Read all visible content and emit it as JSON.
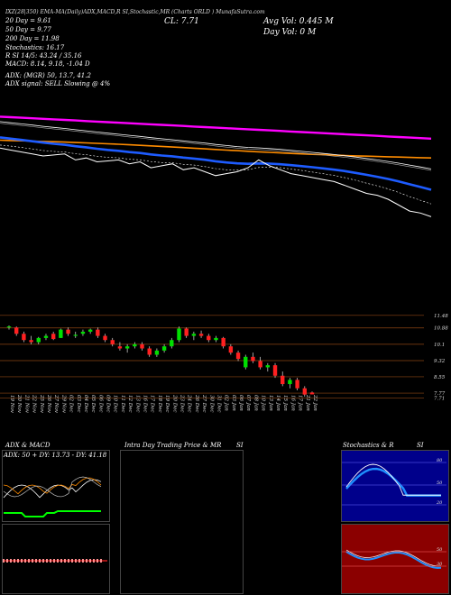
{
  "header": {
    "top_line": "IXZ(28|350)  EMA‑MA(Daily)ADX,MACD,R     SI,Stochastic,MR     (Charts ORLD          ) MunafaSutra.com",
    "ema20": "20 Day = 9.61",
    "ema50": "50 Day = 9.77",
    "ema200": "200 Day = 11.98",
    "stochastics": "Stochastics: 16.17",
    "rsi": "R          SI 14/5: 43.24 / 35.16",
    "macd": "MACD: 8.14, 9.18, -1.04  D",
    "adx": "ADX:                    (MGR) 50, 13.7, 41.2",
    "adx_signal": "ADX signal: SELL Slowing @ 4%",
    "close": "CL: 7.71",
    "avg_vol": "Avg Vol: 0.445 M",
    "day_vol": "Day Vol: 0  M"
  },
  "panels": {
    "adx_macd_title": "ADX & MACD",
    "adx_values": "ADX: 50 + DY: 13.73 - DY: 41.18",
    "intraday_title": "Intra Day Trading Price & MR",
    "intraday_si": "SI",
    "stoch_title": "Stochastics & R",
    "stoch_si": "SI",
    "macd_label": "MACD"
  },
  "chart_data": [
    {
      "type": "line",
      "name": "price-ema-overview",
      "series": [
        {
          "name": "price",
          "values": [
            11.2,
            11.1,
            11.0,
            10.9,
            10.8,
            10.85,
            10.9,
            10.6,
            10.7,
            10.5,
            10.55,
            10.6,
            10.4,
            10.5,
            10.2,
            10.3,
            10.4,
            10.1,
            10.2,
            10.0,
            9.8,
            9.9,
            10.0,
            10.2,
            10.6,
            10.3,
            10.1,
            9.9,
            9.8,
            9.7,
            9.6,
            9.5,
            9.3,
            9.1,
            8.9,
            8.8,
            8.6,
            8.3,
            8.0,
            7.9,
            7.71
          ]
        },
        {
          "name": "ema20",
          "color": "#1e5cff"
        },
        {
          "name": "ema50",
          "color": "#ffffff"
        },
        {
          "name": "ema200",
          "color": "#ff00ff"
        },
        {
          "name": "ema100",
          "color": "#ff8c00"
        }
      ]
    },
    {
      "type": "candlestick",
      "name": "daily-candles",
      "price_ticks": [
        "11.48",
        "10.88",
        "10.1",
        "9.32",
        "8.55",
        "7.77",
        "7.71"
      ],
      "dates": [
        "19 Nov",
        "20 Nov",
        "21 Nov",
        "22 Nov",
        "25 Nov",
        "26 Nov",
        "27 Nov",
        "29 Nov",
        "02 Dec",
        "03 Dec",
        "04 Dec",
        "05 Dec",
        "06 Dec",
        "09 Dec",
        "10 Dec",
        "11 Dec",
        "12 Dec",
        "13 Dec",
        "16 Dec",
        "17 Dec",
        "18 Dec",
        "19 Dec",
        "20 Dec",
        "23 Dec",
        "24 Dec",
        "26 Dec",
        "27 Dec",
        "30 Dec",
        "31 Dec",
        "02 Jan",
        "03 Jan",
        "06 Jan",
        "07 Jan",
        "08 Jan",
        "10 Jan",
        "13 Jan",
        "14 Jan",
        "15 Jan",
        "16 Jan",
        "17 Jan",
        "21 Jan",
        "22 Jan"
      ],
      "candles": [
        [
          10.9,
          11.0,
          10.8,
          10.95
        ],
        [
          10.9,
          10.95,
          10.5,
          10.6
        ],
        [
          10.6,
          10.7,
          10.2,
          10.3
        ],
        [
          10.3,
          10.5,
          10.1,
          10.2
        ],
        [
          10.2,
          10.45,
          10.1,
          10.4
        ],
        [
          10.4,
          10.6,
          10.3,
          10.5
        ],
        [
          10.6,
          10.7,
          10.3,
          10.35
        ],
        [
          10.4,
          10.85,
          10.4,
          10.8
        ],
        [
          10.8,
          10.9,
          10.5,
          10.6
        ],
        [
          10.5,
          10.7,
          10.4,
          10.55
        ],
        [
          10.6,
          10.8,
          10.5,
          10.7
        ],
        [
          10.7,
          10.85,
          10.6,
          10.8
        ],
        [
          10.8,
          10.9,
          10.4,
          10.5
        ],
        [
          10.5,
          10.6,
          10.2,
          10.3
        ],
        [
          10.3,
          10.4,
          10.0,
          10.1
        ],
        [
          10.0,
          10.2,
          9.8,
          9.9
        ],
        [
          9.9,
          10.1,
          9.7,
          10.0
        ],
        [
          10.0,
          10.2,
          9.9,
          10.1
        ],
        [
          10.1,
          10.2,
          9.8,
          9.9
        ],
        [
          9.9,
          10.0,
          9.5,
          9.6
        ],
        [
          9.6,
          9.9,
          9.5,
          9.8
        ],
        [
          9.8,
          10.1,
          9.7,
          10.0
        ],
        [
          10.0,
          10.4,
          9.9,
          10.3
        ],
        [
          10.3,
          10.95,
          10.2,
          10.85
        ],
        [
          10.85,
          10.9,
          10.4,
          10.5
        ],
        [
          10.5,
          10.7,
          10.3,
          10.6
        ],
        [
          10.6,
          10.75,
          10.4,
          10.5
        ],
        [
          10.5,
          10.6,
          10.2,
          10.3
        ],
        [
          10.3,
          10.5,
          10.2,
          10.4
        ],
        [
          10.4,
          10.45,
          9.9,
          10.0
        ],
        [
          10.0,
          10.1,
          9.6,
          9.7
        ],
        [
          9.7,
          9.8,
          9.3,
          9.4
        ],
        [
          9.0,
          9.6,
          8.9,
          9.5
        ],
        [
          9.5,
          9.7,
          9.2,
          9.3
        ],
        [
          9.3,
          9.5,
          8.9,
          9.0
        ],
        [
          9.0,
          9.2,
          8.8,
          9.1
        ],
        [
          9.1,
          9.2,
          8.5,
          8.6
        ],
        [
          8.6,
          8.8,
          8.1,
          8.2
        ],
        [
          8.2,
          8.5,
          8.0,
          8.4
        ],
        [
          8.4,
          8.5,
          7.9,
          8.0
        ],
        [
          8.0,
          8.1,
          7.6,
          7.7
        ],
        [
          7.8,
          7.85,
          7.71,
          7.71
        ]
      ]
    }
  ]
}
